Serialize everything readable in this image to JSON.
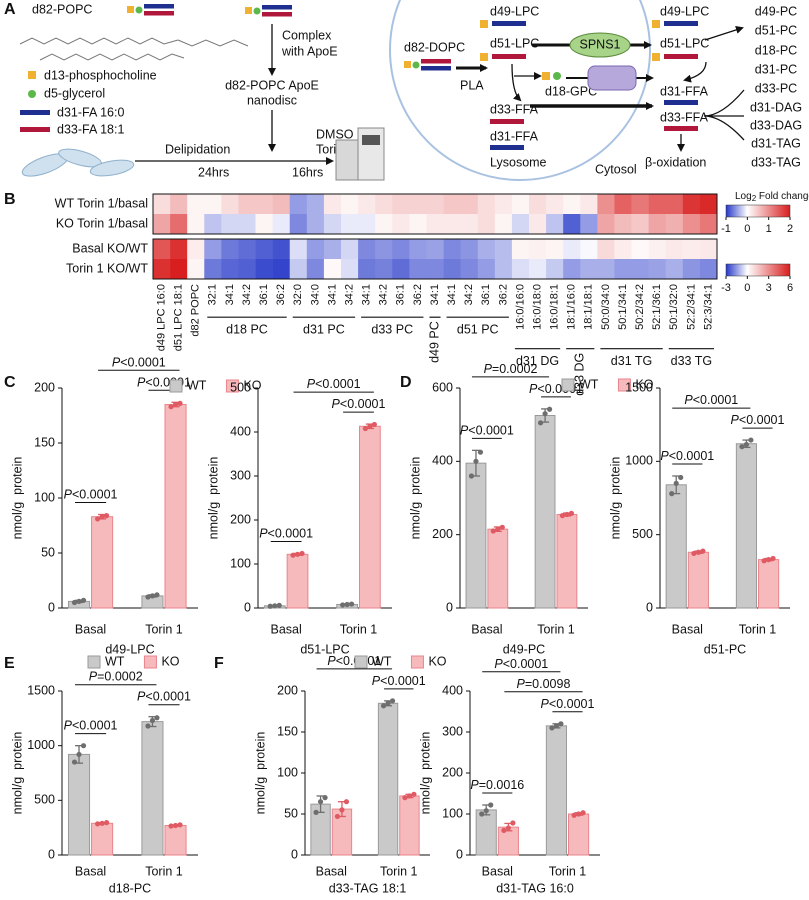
{
  "panel_labels": [
    "A",
    "B",
    "C",
    "D",
    "E",
    "F"
  ],
  "diagram": {
    "substrate": "d82-POPC",
    "legend": [
      "d13-phosphocholine",
      "d5-glycerol",
      "d31-FA 16:0",
      "d33-FA 18:1"
    ],
    "step1": [
      "Complex",
      "with ApoE"
    ],
    "product": [
      "d82-POPC ApoE",
      "nanodisc"
    ],
    "step2": "Delipidation",
    "time1": "24hrs",
    "treatment": [
      "DMSO or",
      "Torin 1"
    ],
    "time2": "16hrs",
    "lysosome": {
      "substrate": "d82-DOPC",
      "enzyme": "PLA",
      "lpc": [
        "d49-LPC",
        "d51-LPC"
      ],
      "ffa": [
        "d33-FFA",
        "d31-FFA"
      ],
      "label": "Lysosome"
    },
    "transporter": "SPNS1",
    "gpc": "d18-GPC",
    "cytosol": "Cytosol",
    "cytosol_lpc": [
      "d49-LPC",
      "d51-LPC"
    ],
    "cytosol_ffa": [
      "d31-FFA",
      "d33-FFA"
    ],
    "oxidation": "β-oxidation",
    "products": [
      "d49-PC",
      "d51-PC",
      "d18-PC",
      "d31-PC",
      "d33-PC",
      "d31-DAG",
      "d33-DAG",
      "d31-TAG",
      "d33-TAG"
    ]
  },
  "chart_data": [
    {
      "type": "heatmap",
      "colorbar_title": [
        "Log",
        "2",
        " Fold change"
      ],
      "colormap": [
        "#2638c8",
        "#ffffff",
        "#d81e1e"
      ],
      "column_groups": [
        {
          "labels": [
            "d49 LPC 16:0",
            "d51 LPC 18:1",
            "d82 POPC"
          ]
        },
        {
          "name": "d18 PC",
          "labels": [
            "32:1",
            "34:1",
            "34:2",
            "36:1",
            "36:2"
          ]
        },
        {
          "name": "d31 PC",
          "labels": [
            "32:0",
            "34:0",
            "34:1",
            "34:2"
          ]
        },
        {
          "name": "d33 PC",
          "labels": [
            "34:1",
            "34:2",
            "36:1",
            "36:2"
          ]
        },
        {
          "name": "d49 PC",
          "labels": [
            "34:1"
          ]
        },
        {
          "name": "d51 PC",
          "labels": [
            "34:1",
            "34:2",
            "36:1",
            "36:2"
          ]
        },
        {
          "name": "d31 DG",
          "labels": [
            "16:0/16:0",
            "16:0/18:0",
            "16:0/18:1"
          ]
        },
        {
          "name": "d33 DG",
          "labels": [
            "18:1/16:0",
            "18:1/18:1"
          ]
        },
        {
          "name": "d31 TG",
          "labels": [
            "50:0/34:0",
            "50:1/34:1",
            "50:2/34:2",
            "52:1/36:1"
          ]
        },
        {
          "name": "d33 TG",
          "labels": [
            "50:1/32:0",
            "52:2/34:1",
            "52:3/34:1"
          ]
        }
      ],
      "blocks": [
        {
          "clim": [
            -1,
            2
          ],
          "cticks": [
            -1,
            0,
            1,
            2
          ],
          "rows": [
            {
              "name": "WT Torin 1/basal",
              "values": [
                0.3,
                0.6,
                0.1,
                0.1,
                0.3,
                0.5,
                0.5,
                0.6,
                -0.5,
                -0.4,
                0.2,
                0.1,
                0.2,
                0.3,
                0.4,
                0.4,
                0.4,
                0.5,
                0.5,
                0.3,
                0.2,
                0.1,
                0.3,
                0.2,
                0.1,
                0.2,
                1.0,
                1.4,
                1.2,
                1.4,
                1.4,
                1.8,
                1.9
              ]
            },
            {
              "name": "KO Torin 1/basal",
              "values": [
                0.8,
                1.3,
                0.1,
                -0.3,
                -0.2,
                -0.2,
                0.1,
                -0.1,
                -0.6,
                -0.4,
                -0.2,
                -0.1,
                -0.1,
                0.1,
                0.2,
                0.1,
                0.2,
                0.2,
                0.2,
                0.3,
                0.1,
                -0.2,
                0.2,
                -0.3,
                -0.8,
                -0.5,
                0.8,
                0.6,
                0.5,
                0.8,
                0.7,
                1.0,
                1.2
              ]
            }
          ]
        },
        {
          "clim": [
            -3,
            6
          ],
          "cticks": [
            -3,
            0,
            3,
            6
          ],
          "rows": [
            {
              "name": "Basal KO/WT",
              "values": [
                4.5,
                5.5,
                0.5,
                -1.5,
                -2,
                -2.2,
                -2.4,
                -2.6,
                -0.5,
                -1.5,
                -1.2,
                -0.6,
                -1.8,
                -1.6,
                -1.8,
                -1.5,
                -1.4,
                -1.8,
                -1.6,
                -1.2,
                -1,
                0.3,
                0.4,
                0.3,
                -0.3,
                -0.1,
                1.0,
                0.5,
                0.2,
                0.4,
                0.6,
                0.5,
                0.6
              ]
            },
            {
              "name": "Torin 1 KO/WT",
              "values": [
                5.5,
                6,
                0.3,
                -2,
                -2.3,
                -2.4,
                -2.7,
                -2.8,
                -0.8,
                -1.8,
                0.2,
                -0.5,
                -2,
                -1.9,
                -2.2,
                -1.8,
                -1.8,
                -2,
                -1.8,
                -1.5,
                -1,
                -0.5,
                -0.3,
                -0.8,
                -1.5,
                -1.2,
                -1.2,
                -1.5,
                -1.5,
                -1.4,
                -1.2,
                -1.6,
                -1.8
              ]
            }
          ]
        }
      ]
    },
    {
      "type": "bar",
      "title": "d49-LPC",
      "ylabel": "nmol/g  protein",
      "categories": [
        "Basal",
        "Torin 1"
      ],
      "ylim": [
        0,
        200
      ],
      "yticks": [
        0,
        50,
        100,
        150,
        200
      ],
      "legend": "top",
      "series": [
        {
          "name": "WT",
          "color": "#c9c9c9",
          "edge_color": "#9a9a9a",
          "point_color": "#6e6e6e",
          "values": [
            6,
            11
          ],
          "errors": [
            1,
            1
          ],
          "points": [
            [
              5,
              6,
              7
            ],
            [
              10,
              11,
              12
            ]
          ]
        },
        {
          "name": "KO",
          "color": "#f6b9bc",
          "edge_color": "#e8868c",
          "point_color": "#e05a64",
          "values": [
            83,
            185
          ],
          "errors": [
            2,
            2
          ],
          "points": [
            [
              81,
              83,
              84
            ],
            [
              183,
              185,
              186
            ]
          ]
        }
      ],
      "p_values": {
        "basal": "P<0.0001",
        "torin": "P<0.0001",
        "ko": "P<0.0001"
      }
    },
    {
      "type": "bar",
      "title": "d51-LPC",
      "ylabel": "nmol/g  protein",
      "categories": [
        "Basal",
        "Torin 1"
      ],
      "ylim": [
        0,
        500
      ],
      "yticks": [
        0,
        100,
        200,
        300,
        400,
        500
      ],
      "series": [
        {
          "color": "#c9c9c9",
          "edge_color": "#9a9a9a",
          "point_color": "#6e6e6e",
          "values": [
            5,
            8
          ],
          "errors": [
            1,
            1
          ],
          "points": [
            [
              4,
              5,
              6
            ],
            [
              7,
              8,
              9
            ]
          ]
        },
        {
          "color": "#f6b9bc",
          "edge_color": "#e8868c",
          "point_color": "#e05a64",
          "values": [
            122,
            413
          ],
          "errors": [
            2,
            5
          ],
          "points": [
            [
              120,
              122,
              124
            ],
            [
              408,
              413,
              417
            ]
          ]
        }
      ],
      "p_values": {
        "basal": "P<0.0001",
        "torin": "P<0.0001",
        "ko": "P<0.0001"
      }
    },
    {
      "type": "bar",
      "title": "d49-PC",
      "ylabel": "nmol/g  protein",
      "categories": [
        "Basal",
        "Torin 1"
      ],
      "ylim": [
        0,
        600
      ],
      "yticks": [
        0,
        200,
        400,
        600
      ],
      "legend": "top",
      "series": [
        {
          "name": "WT",
          "color": "#c9c9c9",
          "edge_color": "#9a9a9a",
          "point_color": "#6e6e6e",
          "values": [
            395,
            525
          ],
          "errors": [
            35,
            18
          ],
          "points": [
            [
              360,
              400,
              425
            ],
            [
              505,
              530,
              542
            ]
          ]
        },
        {
          "name": "KO",
          "color": "#f6b9bc",
          "edge_color": "#e8868c",
          "point_color": "#e05a64",
          "values": [
            215,
            255
          ],
          "errors": [
            6,
            4
          ],
          "points": [
            [
              210,
              215,
              220
            ],
            [
              252,
              255,
              258
            ]
          ]
        }
      ],
      "p_values": {
        "basal": "P<0.0001",
        "torin": "P<0.0001",
        "wt": "P=0.0002"
      }
    },
    {
      "type": "bar",
      "title": "d51-PC",
      "ylabel": "nmol/g  protein",
      "categories": [
        "Basal",
        "Torin 1"
      ],
      "ylim": [
        0,
        1500
      ],
      "yticks": [
        0,
        500,
        1000,
        1500
      ],
      "series": [
        {
          "color": "#c9c9c9",
          "edge_color": "#9a9a9a",
          "point_color": "#6e6e6e",
          "values": [
            840,
            1120
          ],
          "errors": [
            60,
            25
          ],
          "points": [
            [
              780,
              850,
              890
            ],
            [
              1100,
              1115,
              1145
            ]
          ]
        },
        {
          "color": "#f6b9bc",
          "edge_color": "#e8868c",
          "point_color": "#e05a64",
          "values": [
            380,
            330
          ],
          "errors": [
            8,
            8
          ],
          "points": [
            [
              372,
              380,
              388
            ],
            [
              322,
              330,
              338
            ]
          ]
        }
      ],
      "p_values": {
        "basal": "P<0.0001",
        "torin": "P<0.0001",
        "wt": "P<0.0001"
      }
    },
    {
      "type": "bar",
      "title": "d18-PC",
      "ylabel": "nmol/g  protein",
      "categories": [
        "Basal",
        "Torin 1"
      ],
      "ylim": [
        0,
        1500
      ],
      "yticks": [
        0,
        500,
        1000,
        1500
      ],
      "legend": "top",
      "series": [
        {
          "name": "WT",
          "color": "#c9c9c9",
          "edge_color": "#9a9a9a",
          "point_color": "#6e6e6e",
          "values": [
            920,
            1220
          ],
          "errors": [
            80,
            45
          ],
          "points": [
            [
              850,
              920,
              1000
            ],
            [
              1180,
              1230,
              1255
            ]
          ]
        },
        {
          "name": "KO",
          "color": "#f6b9bc",
          "edge_color": "#e8868c",
          "point_color": "#e05a64",
          "values": [
            290,
            270
          ],
          "errors": [
            6,
            6
          ],
          "points": [
            [
              285,
              290,
              296
            ],
            [
              265,
              270,
              276
            ]
          ]
        }
      ],
      "p_values": {
        "basal": "P<0.0001",
        "torin": "P<0.0001",
        "wt": "P=0.0002"
      }
    },
    {
      "type": "bar",
      "title": "d33-TAG 18:1",
      "ylabel": "nmol/g  protein",
      "categories": [
        "Basal",
        "Torin 1"
      ],
      "ylim": [
        0,
        200
      ],
      "yticks": [
        0,
        50,
        100,
        150,
        200
      ],
      "legend": "top",
      "series": [
        {
          "name": "WT",
          "color": "#c9c9c9",
          "edge_color": "#9a9a9a",
          "point_color": "#6e6e6e",
          "values": [
            62,
            185
          ],
          "errors": [
            10,
            3
          ],
          "points": [
            [
              52,
              65,
              70
            ],
            [
              182,
              185,
              188
            ]
          ]
        },
        {
          "name": "KO",
          "color": "#f6b9bc",
          "edge_color": "#e8868c",
          "point_color": "#e05a64",
          "values": [
            56,
            72
          ],
          "errors": [
            9,
            2
          ],
          "points": [
            [
              47,
              55,
              65
            ],
            [
              70,
              72,
              74
            ]
          ]
        }
      ],
      "p_values": {
        "torin": "P<0.0001",
        "wt": "P<0.0001"
      }
    },
    {
      "type": "bar",
      "title": "d31-TAG 16:0",
      "ylabel": "nmol/g  protein",
      "categories": [
        "Basal",
        "Torin 1"
      ],
      "ylim": [
        0,
        400
      ],
      "yticks": [
        0,
        100,
        200,
        300,
        400
      ],
      "series": [
        {
          "color": "#c9c9c9",
          "edge_color": "#9a9a9a",
          "point_color": "#6e6e6e",
          "values": [
            110,
            315
          ],
          "errors": [
            12,
            5
          ],
          "points": [
            [
              100,
              108,
              122
            ],
            [
              310,
              315,
              320
            ]
          ]
        },
        {
          "color": "#f6b9bc",
          "edge_color": "#e8868c",
          "point_color": "#e05a64",
          "values": [
            68,
            100
          ],
          "errors": [
            9,
            3
          ],
          "points": [
            [
              60,
              66,
              78
            ],
            [
              97,
              100,
              103
            ]
          ]
        }
      ],
      "p_values": {
        "basal": "P=0.0016",
        "torin": "P<0.0001",
        "ko": "P=0.0098",
        "wt": "P<0.0001"
      }
    }
  ]
}
